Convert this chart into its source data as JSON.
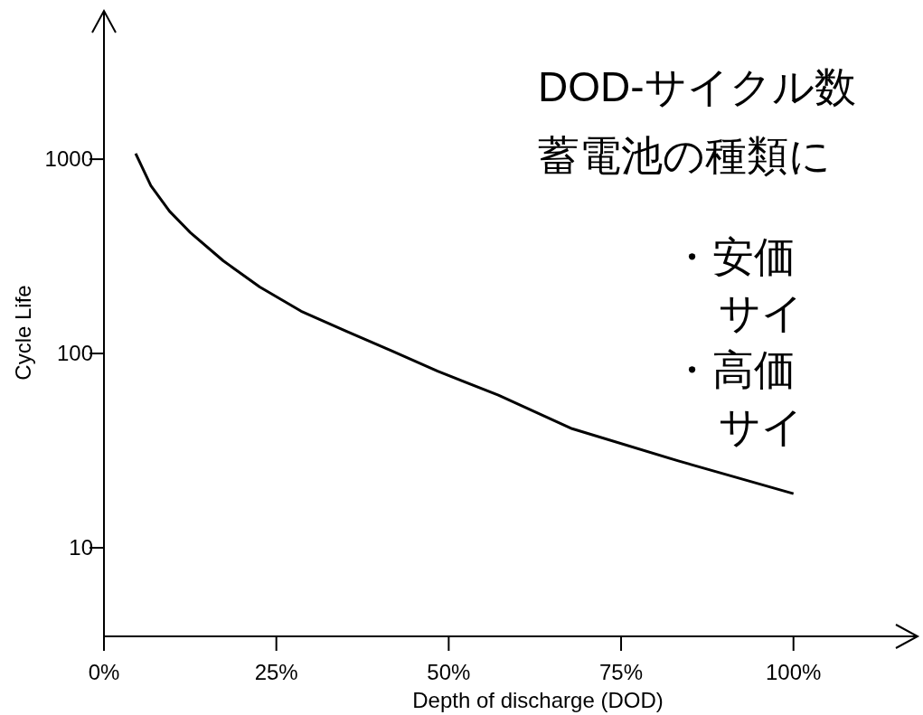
{
  "chart_data": {
    "type": "line",
    "xlabel": "Depth of discharge (DOD)",
    "ylabel": "Cycle Life",
    "x": [
      4.6,
      6.8,
      9.5,
      12.5,
      17.3,
      22.6,
      28.6,
      35.2,
      41.8,
      48.4,
      57.2,
      67.9,
      83.3,
      100
    ],
    "values": [
      1070,
      730,
      540,
      420,
      300,
      220,
      165,
      130,
      103,
      81,
      61,
      41,
      28,
      19
    ],
    "color": "#000000",
    "xlim": [
      0,
      118
    ],
    "xticks": [
      {
        "value": 0,
        "label": "0%"
      },
      {
        "value": 25,
        "label": "25%"
      },
      {
        "value": 50,
        "label": "50%"
      },
      {
        "value": 75,
        "label": "75%"
      },
      {
        "value": 100,
        "label": "100%"
      }
    ],
    "ylim": [
      3.5,
      5800
    ],
    "yticks": [
      10,
      100,
      1000
    ],
    "log": true,
    "annotations": [
      "DOD-サイクル数",
      "蓄電池の種類に",
      "・安価",
      "サイ",
      "・高価",
      "サイ"
    ]
  }
}
